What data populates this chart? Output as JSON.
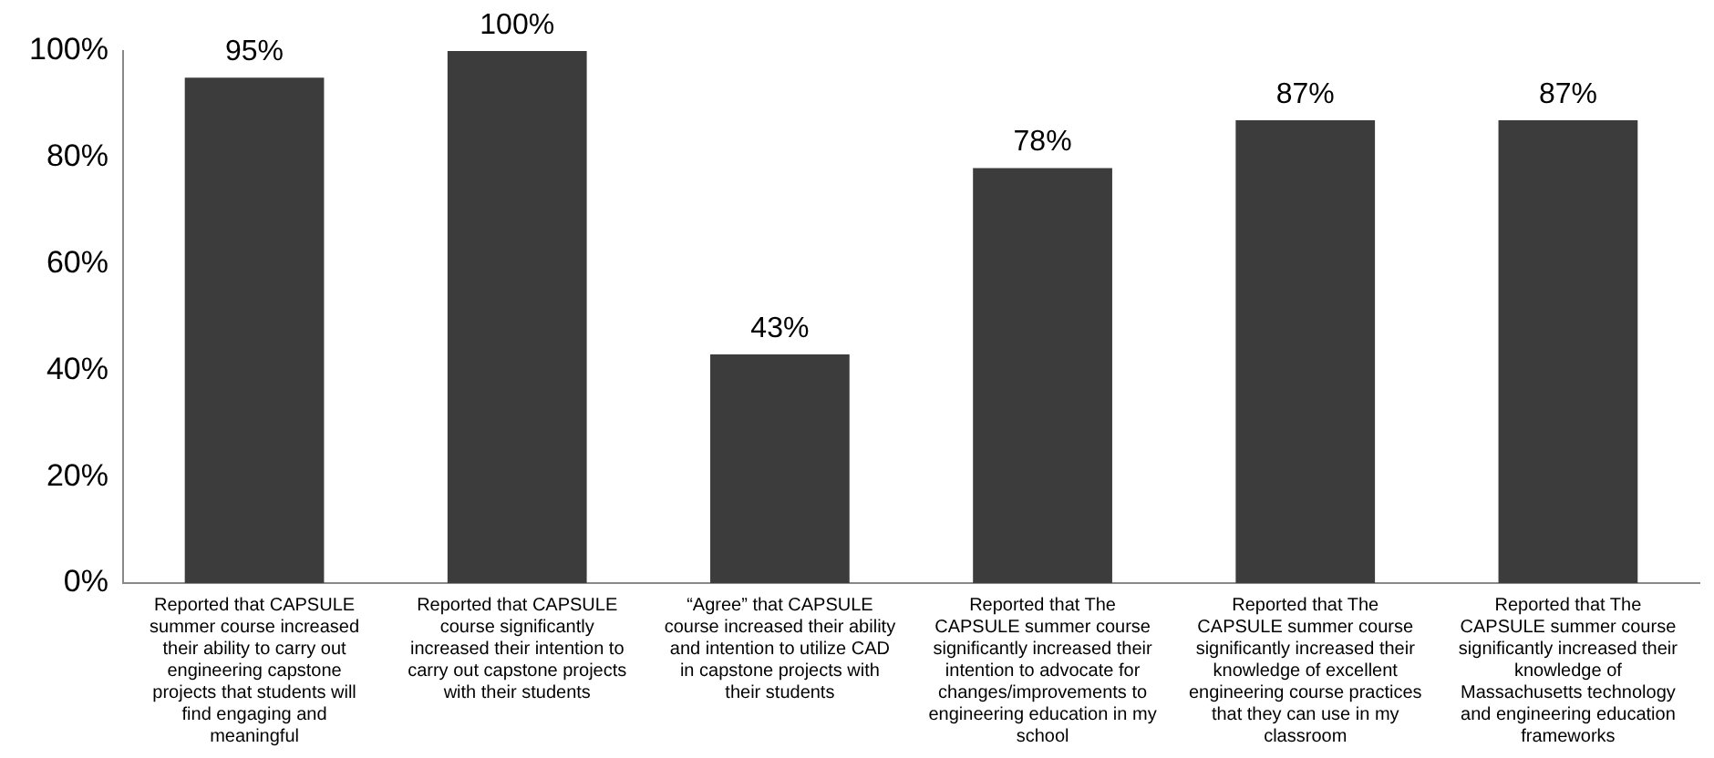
{
  "chart_data": {
    "type": "bar",
    "categories": [
      "Reported that CAPSULE summer course increased their ability to carry out engineering capstone projects that students will find engaging and meaningful",
      "Reported that CAPSULE course significantly increased their intention to carry out capstone projects with their students",
      "“Agree” that CAPSULE course increased their ability and intention to utilize CAD in capstone projects with their students",
      "Reported that The CAPSULE summer course significantly increased their intention to advocate for changes/improvements to engineering education in my school",
      "Reported that The CAPSULE summer course significantly increased their knowledge of excellent engineering course practices that they can use in my classroom",
      "Reported that The CAPSULE summer course significantly increased their knowledge of Massachusetts technology and engineering education frameworks"
    ],
    "values": [
      95,
      100,
      43,
      78,
      87,
      87
    ],
    "value_labels": [
      "95%",
      "100%",
      "43%",
      "78%",
      "87%",
      "87%"
    ],
    "color": "#3c3c3c",
    "ylim": [
      0,
      100
    ],
    "yticks": [
      {
        "value": 0,
        "label": "0%"
      },
      {
        "value": 20,
        "label": "20%"
      },
      {
        "value": 40,
        "label": "40%"
      },
      {
        "value": 60,
        "label": "60%"
      },
      {
        "value": 80,
        "label": "80%"
      },
      {
        "value": 100,
        "label": "100%"
      }
    ],
    "grid": false,
    "legend": false
  }
}
